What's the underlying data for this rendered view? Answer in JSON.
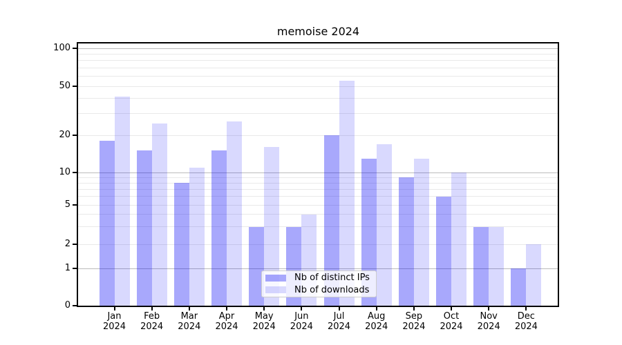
{
  "title": "memoise 2024",
  "y_axis": {
    "tick_labels": [
      "100",
      "50",
      "20",
      "10",
      "5",
      "2",
      "1",
      "0"
    ]
  },
  "x_axis": {
    "tick_labels": [
      "Jan 2024",
      "Feb 2024",
      "Mar 2024",
      "Apr 2024",
      "May 2024",
      "Jun 2024",
      "Jul 2024",
      "Aug 2024",
      "Sep 2024",
      "Oct 2024",
      "Nov 2024",
      "Dec 2024"
    ]
  },
  "legend": {
    "items": [
      {
        "label": "Nb of distinct IPs",
        "color": "rgba(0,0,245,0.34)"
      },
      {
        "label": "Nb of downloads",
        "color": "rgba(0,0,245,0.15)"
      }
    ]
  },
  "chart_data": {
    "type": "bar",
    "title": "memoise 2024",
    "categories": [
      "Jan 2024",
      "Feb 2024",
      "Mar 2024",
      "Apr 2024",
      "May 2024",
      "Jun 2024",
      "Jul 2024",
      "Aug 2024",
      "Sep 2024",
      "Oct 2024",
      "Nov 2024",
      "Dec 2024"
    ],
    "series": [
      {
        "name": "Nb of distinct IPs",
        "color": "rgba(0,0,245,0.34)",
        "values": [
          18,
          15,
          8,
          15,
          3,
          3,
          20,
          13,
          9,
          6,
          3,
          1
        ]
      },
      {
        "name": "Nb of downloads",
        "color": "rgba(0,0,245,0.15)",
        "values": [
          41,
          25,
          11,
          26,
          16,
          4,
          55,
          17,
          13,
          10,
          3,
          2
        ]
      }
    ],
    "xlabel": "",
    "ylabel": "",
    "yscale": "symlog",
    "yticks": [
      100,
      50,
      20,
      10,
      5,
      2,
      1,
      0
    ],
    "minor_gridline_values": [
      90,
      80,
      70,
      60,
      40,
      30,
      9,
      8,
      7,
      6,
      4,
      3
    ],
    "ylim": [
      0,
      115
    ],
    "grid": "horizontal",
    "legend_position": "lower center inside plot"
  }
}
